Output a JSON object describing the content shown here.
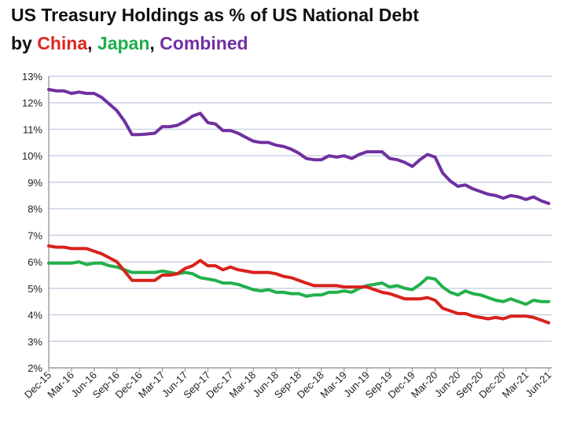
{
  "chart_data": {
    "type": "line",
    "title": "US Treasury Holdings as % of US National Debt",
    "subtitle": {
      "prefix": "by ",
      "parts": [
        {
          "text": "China",
          "color": "#e0251f"
        },
        {
          "text": ", ",
          "color": "#111111"
        },
        {
          "text": "Japan",
          "color": "#1fae4b"
        },
        {
          "text": ", ",
          "color": "#111111"
        },
        {
          "text": "Combined",
          "color": "#7030a0"
        }
      ]
    },
    "xlabel": "",
    "ylabel": "",
    "ylim": [
      2,
      13
    ],
    "yticks": [
      "2%",
      "3%",
      "4%",
      "5%",
      "6%",
      "7%",
      "8%",
      "9%",
      "10%",
      "11%",
      "12%",
      "13%"
    ],
    "grid": true,
    "xtick_labels": [
      "Dec-15",
      "Mar-16",
      "Jun-16",
      "Sep-16",
      "Dec-16",
      "Mar-17",
      "Jun-17",
      "Sep-17",
      "Dec-17",
      "Mar-18",
      "Jun-18",
      "Sep-18",
      "Dec-18",
      "Mar-19",
      "Jun-19",
      "Sep-19",
      "Dec-19",
      "Mar-20",
      "Jun-20",
      "Sep-20",
      "Dec-20",
      "Mar-21",
      "Jun-21"
    ],
    "x_note": "monthly points Dec-15 to Jun-21",
    "series": [
      {
        "name": "Combined",
        "color": "#7030a0",
        "values": [
          12.5,
          12.45,
          12.45,
          12.35,
          12.4,
          12.35,
          12.35,
          12.2,
          11.95,
          11.7,
          11.3,
          10.8,
          10.8,
          10.82,
          10.85,
          11.1,
          11.1,
          11.15,
          11.3,
          11.5,
          11.6,
          11.25,
          11.2,
          10.95,
          10.95,
          10.85,
          10.7,
          10.55,
          10.5,
          10.5,
          10.4,
          10.35,
          10.25,
          10.1,
          9.9,
          9.85,
          9.85,
          10.0,
          9.95,
          10.0,
          9.9,
          10.05,
          10.15,
          10.15,
          10.15,
          9.9,
          9.85,
          9.75,
          9.6,
          9.85,
          10.05,
          9.95,
          9.35,
          9.05,
          8.85,
          8.9,
          8.75,
          8.65,
          8.55,
          8.5,
          8.4,
          8.5,
          8.45,
          8.35,
          8.45,
          8.3,
          8.2
        ]
      },
      {
        "name": "Japan",
        "color": "#22b04b",
        "values": [
          5.95,
          5.95,
          5.95,
          5.95,
          6.0,
          5.9,
          5.95,
          5.95,
          5.85,
          5.8,
          5.7,
          5.6,
          5.6,
          5.6,
          5.6,
          5.65,
          5.6,
          5.55,
          5.6,
          5.55,
          5.4,
          5.35,
          5.3,
          5.2,
          5.2,
          5.15,
          5.05,
          4.95,
          4.9,
          4.95,
          4.85,
          4.85,
          4.8,
          4.8,
          4.7,
          4.75,
          4.75,
          4.85,
          4.85,
          4.9,
          4.85,
          5.0,
          5.1,
          5.15,
          5.2,
          5.05,
          5.1,
          5.0,
          4.95,
          5.15,
          5.4,
          5.35,
          5.05,
          4.85,
          4.75,
          4.9,
          4.8,
          4.75,
          4.65,
          4.55,
          4.5,
          4.6,
          4.5,
          4.4,
          4.55,
          4.5,
          4.5
        ]
      },
      {
        "name": "China",
        "color": "#d9211c",
        "values": [
          6.6,
          6.55,
          6.55,
          6.5,
          6.5,
          6.5,
          6.4,
          6.3,
          6.15,
          6.0,
          5.65,
          5.3,
          5.3,
          5.3,
          5.3,
          5.5,
          5.5,
          5.55,
          5.75,
          5.85,
          6.05,
          5.85,
          5.85,
          5.7,
          5.8,
          5.7,
          5.65,
          5.6,
          5.6,
          5.6,
          5.55,
          5.45,
          5.4,
          5.3,
          5.2,
          5.1,
          5.1,
          5.1,
          5.1,
          5.05,
          5.05,
          5.05,
          5.05,
          4.95,
          4.85,
          4.8,
          4.7,
          4.6,
          4.6,
          4.6,
          4.65,
          4.55,
          4.25,
          4.15,
          4.05,
          4.05,
          3.95,
          3.9,
          3.85,
          3.9,
          3.85,
          3.95,
          3.95,
          3.95,
          3.9,
          3.8,
          3.7
        ]
      }
    ]
  }
}
